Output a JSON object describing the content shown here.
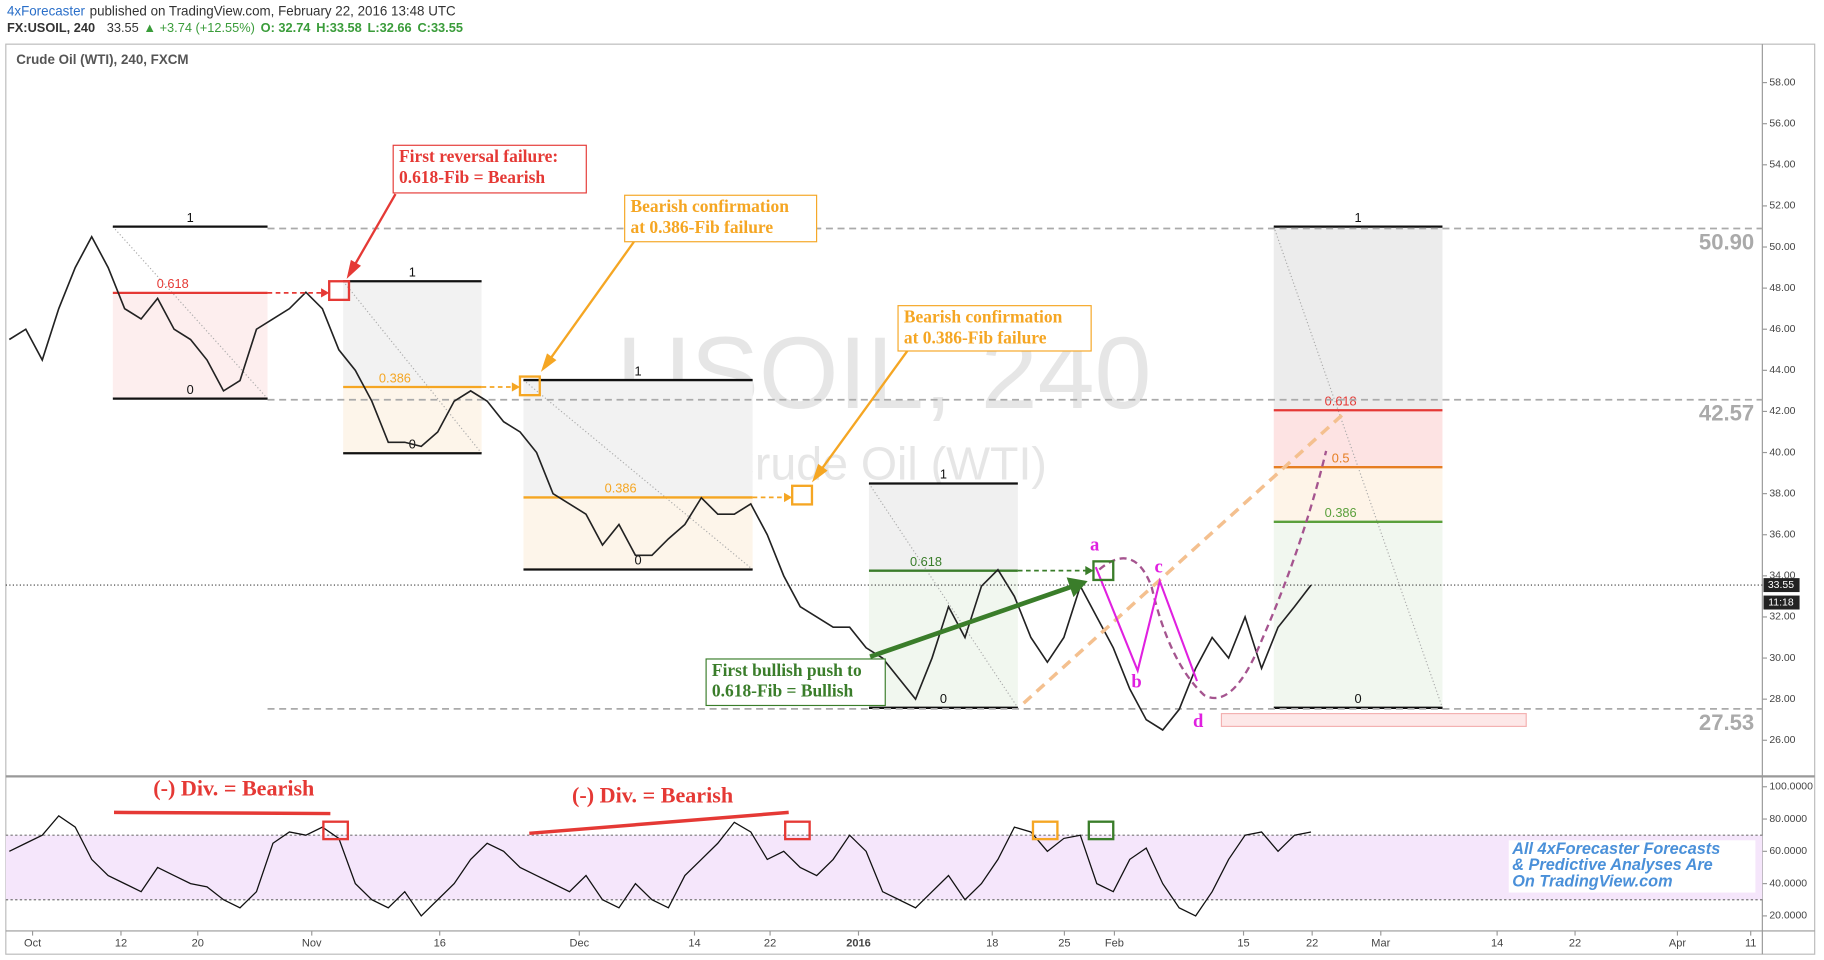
{
  "header": {
    "author": "4xForecaster",
    "published": "published on TradingView.com, February 22, 2016 13:48 UTC",
    "symbol": "FX:USOIL, 240",
    "last": "33.55",
    "change": "▲ +3.74 (+12.55%)",
    "open": "O: 32.74",
    "high": "H:33.58",
    "low": "L:32.66",
    "close": "C:33.55"
  },
  "pane_title": "Crude Oil (WTI), 240, FXCM",
  "watermark": {
    "symbol": "USOIL, 240",
    "name": "Crude Oil (WTI)"
  },
  "price_chart": {
    "ylim": [
      24.3,
      59.87
    ],
    "yticks": [
      {
        "value": 26,
        "label": "26.00"
      },
      {
        "value": 28,
        "label": "28.00"
      },
      {
        "value": 30,
        "label": "30.00"
      },
      {
        "value": 32,
        "label": "32.00"
      },
      {
        "value": 34,
        "label": "34.00"
      },
      {
        "value": 36,
        "label": "36.00"
      },
      {
        "value": 38,
        "label": "38.00"
      },
      {
        "value": 40,
        "label": "40.00"
      },
      {
        "value": 42,
        "label": "42.00"
      },
      {
        "value": 44,
        "label": "44.00"
      },
      {
        "value": 46,
        "label": "46.00"
      },
      {
        "value": 48,
        "label": "48.00"
      },
      {
        "value": 50,
        "label": "50.00"
      },
      {
        "value": 52,
        "label": "52.00"
      },
      {
        "value": 54,
        "label": "54.00"
      },
      {
        "value": 56,
        "label": "56.00"
      },
      {
        "value": 58,
        "label": "58.00"
      }
    ],
    "closes": [
      45.5,
      46,
      44.5,
      47,
      49,
      50.5,
      49,
      47,
      46.5,
      47.5,
      46,
      45.5,
      44.5,
      43,
      43.5,
      46,
      46.5,
      47,
      47.8,
      47,
      45,
      44,
      42.5,
      40.5,
      40.5,
      40.3,
      41,
      42.5,
      43,
      42.5,
      41.5,
      41,
      40,
      38,
      37.5,
      37,
      35.5,
      36.5,
      35,
      35,
      35.8,
      36.5,
      37.8,
      37,
      37,
      37.5,
      36,
      34,
      32.5,
      32,
      31.5,
      31.5,
      30.5,
      30,
      29,
      28,
      30,
      32.5,
      31,
      33.5,
      34.3,
      33,
      31,
      29.8,
      31,
      33.5,
      32,
      30.5,
      28.5,
      27,
      26.5,
      27.5,
      29.5,
      31,
      30,
      32,
      29.5,
      31.5,
      32.5,
      33.55
    ],
    "levels": [
      {
        "value": 50.9,
        "label": "50.90"
      },
      {
        "value": 42.57,
        "label": "42.57"
      },
      {
        "value": 27.53,
        "label": "27.53"
      }
    ],
    "last_price": {
      "value": 33.55,
      "label": "33.55"
    },
    "countdown": "11:18"
  },
  "oscillator": {
    "ylim": [
      15,
      105
    ],
    "band": [
      30,
      70
    ],
    "yticks": [
      {
        "value": 100,
        "label": "100.0000"
      },
      {
        "value": 80,
        "label": "80.0000"
      },
      {
        "value": 60,
        "label": "60.0000"
      },
      {
        "value": 40,
        "label": "40.0000"
      },
      {
        "value": 20,
        "label": "20.0000"
      }
    ],
    "values": [
      60,
      65,
      70,
      82,
      75,
      55,
      45,
      40,
      35,
      50,
      45,
      40,
      38,
      30,
      25,
      35,
      65,
      72,
      70,
      75,
      68,
      40,
      30,
      25,
      35,
      20,
      30,
      40,
      55,
      65,
      60,
      50,
      45,
      40,
      35,
      45,
      30,
      25,
      40,
      30,
      25,
      45,
      55,
      65,
      78,
      72,
      55,
      60,
      50,
      45,
      55,
      70,
      60,
      35,
      30,
      25,
      35,
      45,
      30,
      40,
      55,
      75,
      72,
      60,
      68,
      70,
      40,
      35,
      55,
      62,
      40,
      25,
      20,
      35,
      55,
      70,
      72,
      60,
      70,
      72
    ]
  },
  "time_axis": [
    "Oct",
    "12",
    "20",
    "Nov",
    "16",
    "Dec",
    "14",
    "22",
    "2016",
    "18",
    "25",
    "Feb",
    "15",
    "22",
    "Mar",
    "14",
    "22",
    "Apr",
    "11"
  ],
  "fib_labels": [
    "1",
    "0.618",
    "0",
    "1",
    "0.386",
    "0",
    "1",
    "0.386",
    "0",
    "1",
    "0.618",
    "0",
    "1",
    "0.618",
    "0.5",
    "0.386",
    "0"
  ],
  "callouts": [
    [
      "First reversal failure:",
      "0.618-Fib = Bearish"
    ],
    [
      "Bearish confirmation",
      "at 0.386-Fib failure"
    ],
    [
      "Bearish confirmation",
      "at 0.386-Fib failure"
    ],
    [
      "First bullish push to",
      "0.618-Fib = Bullish"
    ]
  ],
  "waves": [
    "a",
    "b",
    "c",
    "d"
  ],
  "divergences": [
    "(-) Div. = Bearish",
    "(-) Div. = Bearish"
  ],
  "promo": [
    "All 4xForecaster Forecasts",
    "& Predictive Analyses Are",
    "On TradingView.com"
  ]
}
